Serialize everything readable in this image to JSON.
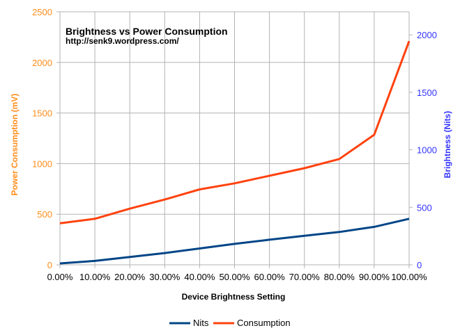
{
  "chart_data": {
    "type": "line",
    "title": "Brightness vs Power Consumption",
    "subtitle": "http://senk9.wordpress.com/",
    "xlabel": "Device Brightness Setting",
    "ylabel_left": "Power Consumption (mV)",
    "ylabel_right": "Brightness (Nits)",
    "categories": [
      "0.00%",
      "10.00%",
      "20.00%",
      "30.00%",
      "40.00%",
      "50.00%",
      "60.00%",
      "70.00%",
      "80.00%",
      "90.00%",
      "100.00%"
    ],
    "ylim_left": [
      0,
      2500
    ],
    "yticks_left": [
      "0",
      "500",
      "1000",
      "1500",
      "2000",
      "2500"
    ],
    "ylim_right": [
      0,
      2200
    ],
    "yticks_right": [
      "0",
      "500",
      "1000",
      "1500",
      "2000"
    ],
    "grid": true,
    "legend_position": "bottom",
    "series": [
      {
        "name": "Nits",
        "axis": "right",
        "color": "#004586",
        "values": [
          12,
          34,
          68,
          102,
          142,
          182,
          218,
          252,
          285,
          330,
          400
        ]
      },
      {
        "name": "Consumption",
        "axis": "left",
        "color": "#ff420e",
        "values": [
          410,
          455,
          555,
          645,
          745,
          805,
          880,
          955,
          1045,
          1285,
          2210
        ]
      }
    ],
    "colors": {
      "left_axis": "#ff8c1a",
      "right_axis": "#3333ff",
      "grid": "#b3b3b3"
    }
  }
}
